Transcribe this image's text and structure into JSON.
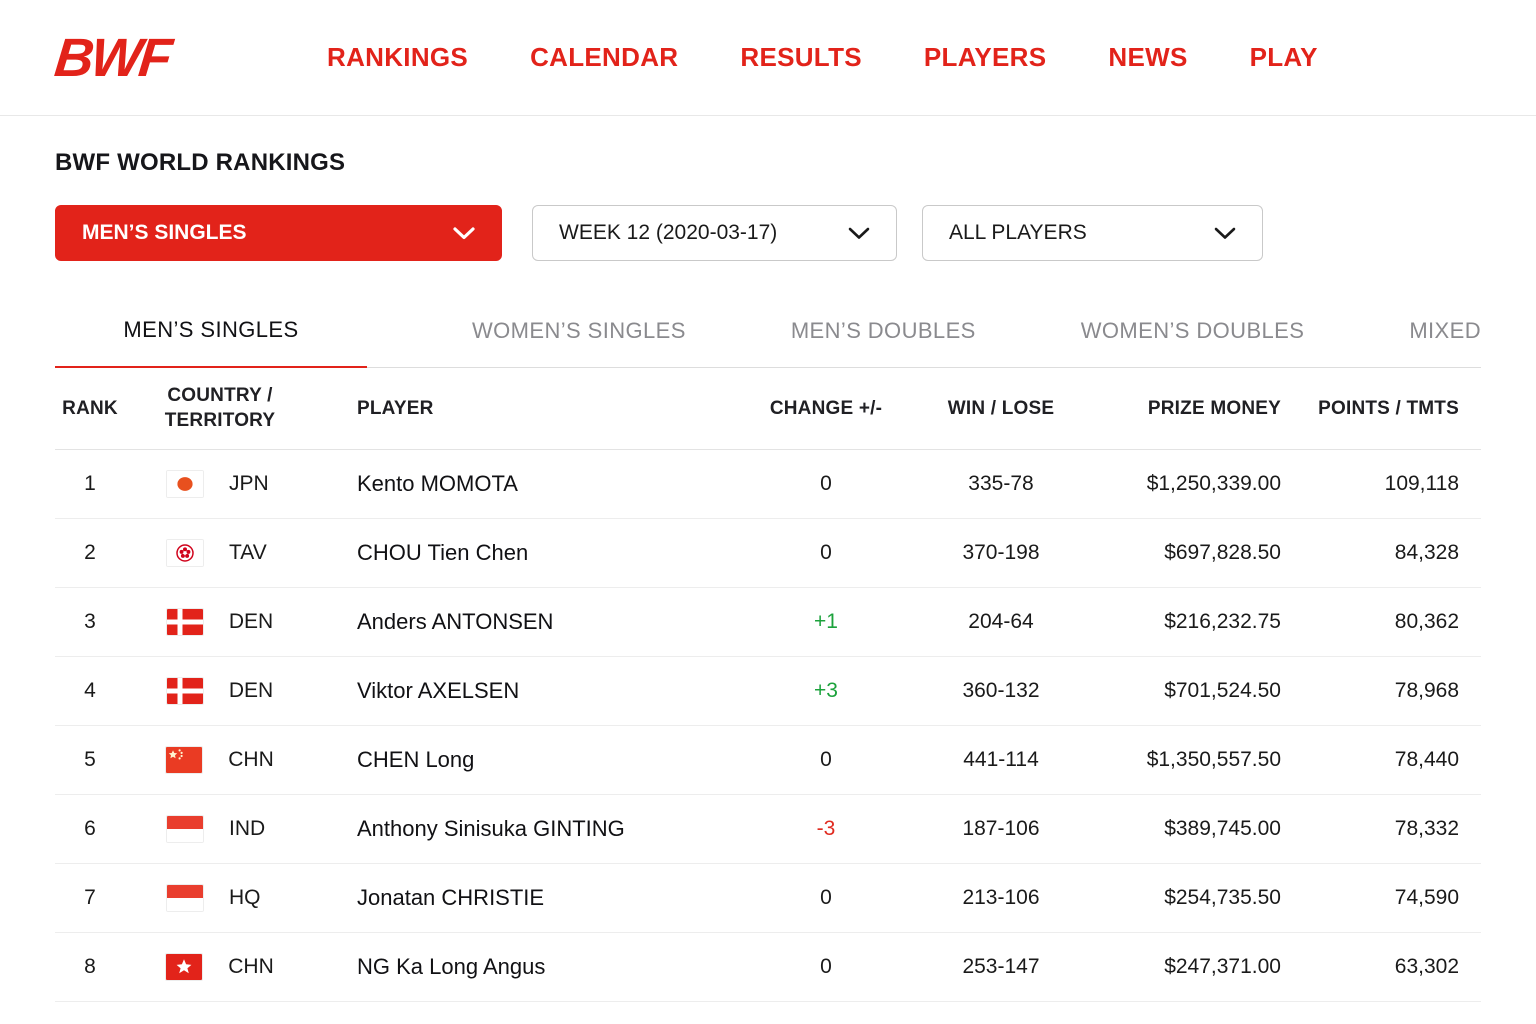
{
  "colors": {
    "accent_red": "#e2231a",
    "positive_green": "#1ca23c",
    "negative_red": "#e02b20",
    "inactive_tab_gray": "#8a8a8e"
  },
  "nav": {
    "logo": "BWF",
    "items": [
      "RANKINGS",
      "CALENDAR",
      "RESULTS",
      "PLAYERS",
      "NEWS",
      "PLAY"
    ]
  },
  "page": {
    "title": "BWF WORLD RANKINGS"
  },
  "filters": {
    "category": {
      "value": "MEN’S SINGLES",
      "icon": "chevron-down-icon"
    },
    "week": {
      "value": "WEEK 12 (2020-03-17)",
      "icon": "chevron-down-icon"
    },
    "players": {
      "value": "ALL PLAYERS",
      "icon": "chevron-down-icon"
    }
  },
  "tabs": [
    {
      "label": "MEN’S SINGLES",
      "active": true
    },
    {
      "label": "WOMEN’S SINGLES",
      "active": false
    },
    {
      "label": "MEN’S DOUBLES",
      "active": false
    },
    {
      "label": "WOMEN’S DOUBLES",
      "active": false
    },
    {
      "label": "MIXED",
      "active": false
    }
  ],
  "table": {
    "headers": [
      "RANK",
      "COUNTRY / TERRITORY",
      "PLAYER",
      "CHANGE +/-",
      "WIN / LOSE",
      "PRIZE MONEY",
      "POINTS / TMTS"
    ],
    "rows": [
      {
        "rank": "1",
        "flag": "jpn",
        "country_code": "JPN",
        "player": "Kento MOMOTA",
        "change": "0",
        "change_dir": "zero",
        "win_lose": "335-78",
        "prize_money": "$1,250,339.00",
        "points": "109,118"
      },
      {
        "rank": "2",
        "flag": "tpe",
        "country_code": "TAV",
        "player": "CHOU Tien Chen",
        "change": "0",
        "change_dir": "zero",
        "win_lose": "370-198",
        "prize_money": "$697,828.50",
        "points": "84,328"
      },
      {
        "rank": "3",
        "flag": "den",
        "country_code": "DEN",
        "player": "Anders ANTONSEN",
        "change": "+1",
        "change_dir": "up",
        "win_lose": "204-64",
        "prize_money": "$216,232.75",
        "points": "80,362"
      },
      {
        "rank": "4",
        "flag": "den",
        "country_code": "DEN",
        "player": "Viktor AXELSEN",
        "change": "+3",
        "change_dir": "up",
        "win_lose": "360-132",
        "prize_money": "$701,524.50",
        "points": "78,968"
      },
      {
        "rank": "5",
        "flag": "chn",
        "country_code": "CHN",
        "player": "CHEN Long",
        "change": "0",
        "change_dir": "zero",
        "win_lose": "441-114",
        "prize_money": "$1,350,557.50",
        "points": "78,440"
      },
      {
        "rank": "6",
        "flag": "ina",
        "country_code": "IND",
        "player": "Anthony Sinisuka GINTING",
        "change": "-3",
        "change_dir": "down",
        "win_lose": "187-106",
        "prize_money": "$389,745.00",
        "points": "78,332"
      },
      {
        "rank": "7",
        "flag": "ina",
        "country_code": "HQ",
        "player": "Jonatan CHRISTIE",
        "change": "0",
        "change_dir": "zero",
        "win_lose": "213-106",
        "prize_money": "$254,735.50",
        "points": "74,590"
      },
      {
        "rank": "8",
        "flag": "hkg",
        "country_code": "CHN",
        "player": "NG Ka Long Angus",
        "change": "0",
        "change_dir": "zero",
        "win_lose": "253-147",
        "prize_money": "$247,371.00",
        "points": "63,302"
      }
    ]
  }
}
